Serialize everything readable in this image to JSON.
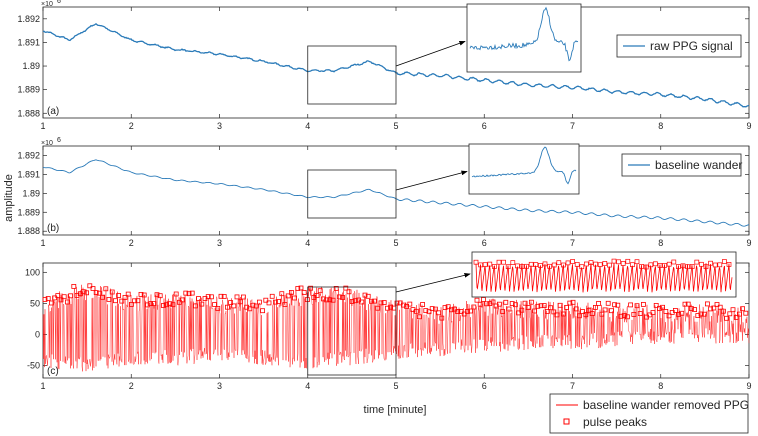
{
  "chart_data": [
    {
      "type": "line",
      "panel_label": "(a)",
      "exponent_label": "×10",
      "exponent_power": "6",
      "x": [
        1,
        1.3,
        1.6,
        2,
        2.5,
        3,
        3.5,
        4,
        4.3,
        4.7,
        5,
        5.5,
        6,
        6.5,
        7,
        7.5,
        8,
        8.5,
        9
      ],
      "series": [
        {
          "name": "raw PPG signal",
          "values": [
            1.8915,
            1.8911,
            1.8918,
            1.8911,
            1.8907,
            1.8905,
            1.8902,
            1.8898,
            1.8898,
            1.8902,
            1.8897,
            1.8896,
            1.8894,
            1.8892,
            1.8891,
            1.8889,
            1.8888,
            1.8886,
            1.8883
          ],
          "color": "#2b7bb9"
        }
      ],
      "xticks": [
        "1",
        "2",
        "3",
        "4",
        "5",
        "6",
        "7",
        "8",
        "9"
      ],
      "yticks": [
        "1.888",
        "1.889",
        "1.89",
        "1.891",
        "1.892"
      ],
      "xlim": [
        1,
        9
      ],
      "ylim": [
        1.8878,
        1.8925
      ],
      "zoom_window": [
        4,
        5
      ],
      "legend": "top-right"
    },
    {
      "type": "line",
      "panel_label": "(b)",
      "exponent_label": "×10",
      "exponent_power": "6",
      "x": [
        1,
        1.3,
        1.6,
        2,
        2.5,
        3,
        3.5,
        4,
        4.3,
        4.7,
        5,
        5.5,
        6,
        6.5,
        7,
        7.5,
        8,
        8.5,
        9
      ],
      "series": [
        {
          "name": "baseline wander",
          "values": [
            1.8914,
            1.8911,
            1.8918,
            1.8911,
            1.8907,
            1.8905,
            1.8902,
            1.8898,
            1.8898,
            1.8902,
            1.8897,
            1.8895,
            1.8893,
            1.8891,
            1.889,
            1.8888,
            1.8887,
            1.8885,
            1.8883
          ],
          "color": "#2b7bb9"
        }
      ],
      "xticks": [
        "1",
        "2",
        "3",
        "4",
        "5",
        "6",
        "7",
        "8",
        "9"
      ],
      "yticks": [
        "1.888",
        "1.889",
        "1.89",
        "1.891",
        "1.892"
      ],
      "xlim": [
        1,
        9
      ],
      "ylim": [
        1.8878,
        1.8925
      ],
      "zoom_window": [
        4,
        5
      ],
      "legend": "top-right"
    },
    {
      "type": "line",
      "panel_label": "(c)",
      "series": [
        {
          "name": "baseline wander removed PPG",
          "color": "#ff0000"
        },
        {
          "name": "pulse peaks",
          "color": "#ff0000",
          "marker": "square"
        }
      ],
      "envelope": {
        "x": [
          1,
          1.5,
          2,
          2.5,
          3,
          3.5,
          4,
          4.5,
          5,
          5.5,
          6,
          6.5,
          7,
          7.5,
          8,
          8.5,
          9
        ],
        "upper": [
          60,
          85,
          65,
          70,
          62,
          60,
          78,
          75,
          55,
          45,
          60,
          55,
          52,
          50,
          48,
          50,
          45
        ],
        "lower": [
          -55,
          -60,
          -50,
          -50,
          -45,
          -50,
          -55,
          -50,
          -40,
          -35,
          -30,
          -25,
          -25,
          -20,
          -15,
          -15,
          -15
        ]
      },
      "xticks": [
        "1",
        "2",
        "3",
        "4",
        "5",
        "6",
        "7",
        "8",
        "9"
      ],
      "yticks": [
        "-50",
        "0",
        "50",
        "100"
      ],
      "xlim": [
        1,
        9
      ],
      "ylim": [
        -70,
        115
      ],
      "zoom_window": [
        4,
        5
      ],
      "legend": "bottom-right"
    }
  ],
  "axes": {
    "ylabel": "amplitude",
    "xlabel": "time [minute]"
  }
}
